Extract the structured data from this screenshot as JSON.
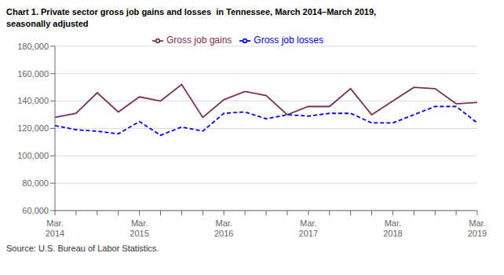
{
  "chart_data": {
    "type": "line",
    "title": "Chart 1. Private sector gross job gains and losses  in Tennessee, March 2014–March 2019,",
    "subtitle": "seasonally adjusted",
    "annotations": [
      "Source: U.S. Bureau of Labor Statistics."
    ],
    "categories": [
      "Mar.\n2014",
      null,
      null,
      null,
      "Mar.\n2015",
      null,
      null,
      null,
      "Mar.\n2016",
      null,
      null,
      null,
      "Mar.\n2017",
      null,
      null,
      null,
      "Mar.\n2018",
      null,
      null,
      null,
      "Mar.\n2019"
    ],
    "series": [
      {
        "name": "Gross job gains",
        "color": "#7B3055",
        "line_style": "solid",
        "values": [
          128000,
          131000,
          146000,
          132000,
          143000,
          140000,
          152000,
          128000,
          141000,
          147000,
          144000,
          130000,
          136000,
          136000,
          149000,
          130000,
          140000,
          150000,
          149000,
          138000,
          139000
        ]
      },
      {
        "name": "Gross job losses",
        "color": "#0000EE",
        "line_style": "dashed",
        "values": [
          122000,
          119000,
          118000,
          116000,
          125000,
          115000,
          121000,
          118000,
          131000,
          132000,
          127000,
          130000,
          129000,
          131000,
          131000,
          124000,
          124000,
          130000,
          136000,
          136000,
          124000
        ]
      }
    ],
    "ylim": [
      60000,
      180000
    ],
    "yticks": [
      {
        "value": 60000,
        "label": "60,000"
      },
      {
        "value": 80000,
        "label": "80,000"
      },
      {
        "value": 100000,
        "label": "100,000"
      },
      {
        "value": 120000,
        "label": "120,000"
      },
      {
        "value": 140000,
        "label": "140,000"
      },
      {
        "value": 160000,
        "label": "160,000"
      },
      {
        "value": 180000,
        "label": "180,000"
      }
    ],
    "grid": true,
    "legend": "top"
  }
}
